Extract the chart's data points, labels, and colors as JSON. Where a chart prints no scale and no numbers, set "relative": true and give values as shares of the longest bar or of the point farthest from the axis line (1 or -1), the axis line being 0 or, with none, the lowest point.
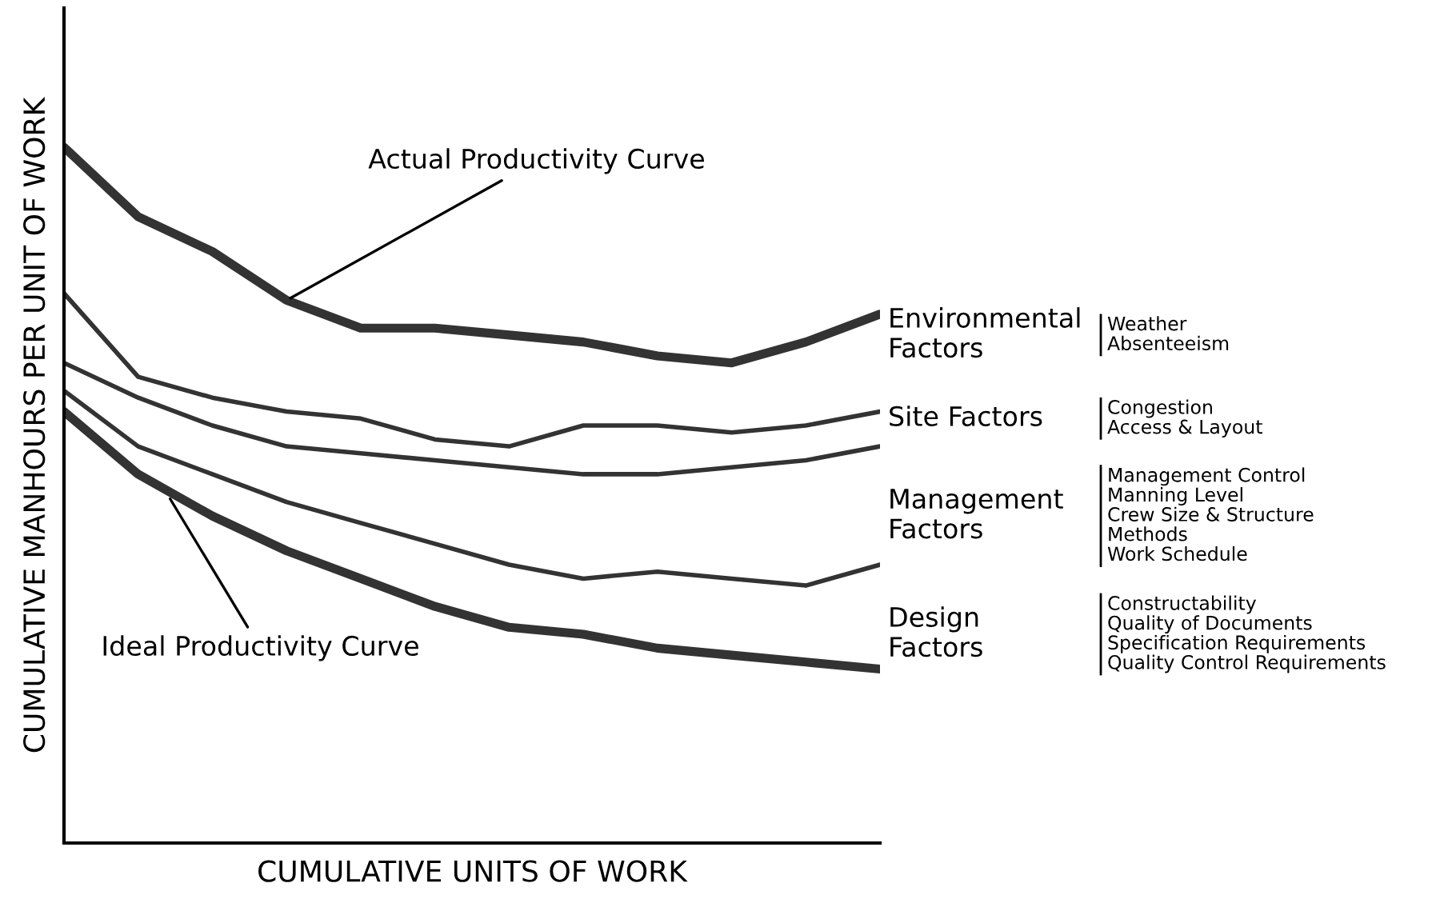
{
  "chart_data": {
    "type": "line",
    "relative": true,
    "xlabel": "CUMULATIVE UNITS OF WORK",
    "ylabel": "CUMULATIVE MANHOURS PER UNIT OF WORK",
    "categories": [
      null,
      null,
      null,
      null,
      null,
      null,
      null,
      null,
      null,
      null,
      null,
      null
    ],
    "grid": false,
    "legend": false,
    "marker": "none",
    "line_style": "solid",
    "series": [
      {
        "color": "#333333",
        "values": [
          1.0,
          0.9,
          0.85,
          0.78,
          0.74,
          0.74,
          0.73,
          0.72,
          0.7,
          0.69,
          0.72,
          0.76
        ]
      },
      {
        "color": "#333333",
        "values": [
          0.79,
          0.67,
          0.64,
          0.62,
          0.61,
          0.58,
          0.57,
          0.6,
          0.6,
          0.59,
          0.6,
          0.62
        ]
      },
      {
        "color": "#333333",
        "values": [
          0.69,
          0.64,
          0.6,
          0.57,
          0.56,
          0.55,
          0.54,
          0.53,
          0.53,
          0.54,
          0.55,
          0.57
        ]
      },
      {
        "color": "#333333",
        "values": [
          0.65,
          0.57,
          0.53,
          0.49,
          0.46,
          0.43,
          0.4,
          0.38,
          0.39,
          0.38,
          0.37,
          0.4
        ]
      },
      {
        "color": "#333333",
        "values": [
          0.62,
          0.53,
          0.47,
          0.42,
          0.38,
          0.34,
          0.31,
          0.3,
          0.28,
          0.27,
          0.26,
          0.25
        ]
      }
    ],
    "annotations": [
      "Actual Productivity Curve",
      "Ideal Productivity Curve",
      "Environmental\nFactors",
      "Weather\nAbsenteeism",
      "Site Factors",
      "Congestion\nAccess & Layout",
      "Management\nFactors",
      "Management Control\nManning Level\nCrew Size & Structure\nMethods\nWork Schedule",
      "Design\nFactors",
      "Constructability\nQuality of Documents\nSpecification Requirements\nQuality Control Requirements"
    ]
  }
}
